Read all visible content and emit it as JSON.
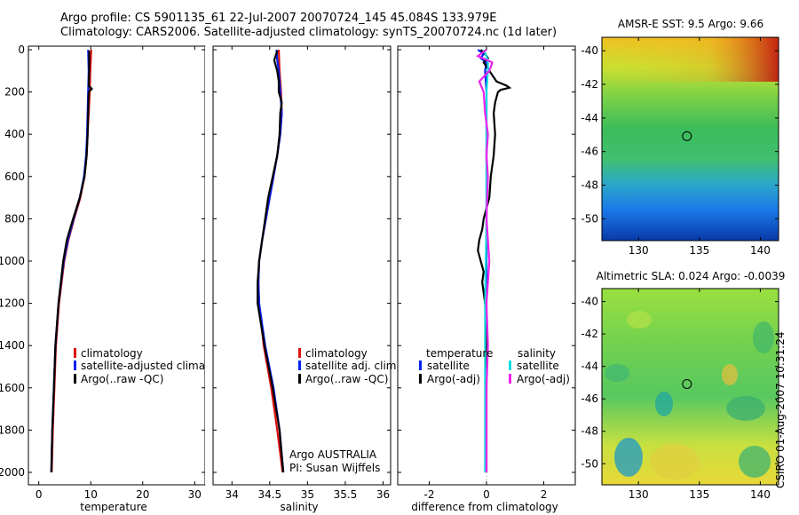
{
  "header": {
    "line1": "Argo profile: CS 5901135_61 22-Jul-2007 20070724_145 45.084S 133.979E",
    "line2": "Climatology: CARS2006. Satellite-adjusted climatology: synTS_20070724.nc (1d later)"
  },
  "stamp": "CSIRO 01-Aug-2007 10:31:24",
  "colors": {
    "climatology": "#dd1111",
    "satellite": "#0022ee",
    "argo": "#000000",
    "sal_satellite": "#11dddd",
    "sal_argo": "#ee22ee"
  },
  "chart_data": [
    {
      "type": "line",
      "id": "temperature",
      "xlabel": "temperature",
      "ylabel": "",
      "xlim": [
        -2,
        32
      ],
      "ylim": [
        2050,
        0
      ],
      "xticks": [
        0,
        10,
        20,
        30
      ],
      "xtick_labels": [
        "0",
        "10",
        "20",
        "30"
      ],
      "yticks": [
        0,
        200,
        400,
        600,
        800,
        1000,
        1200,
        1400,
        1600,
        1800,
        2000
      ],
      "ytick_labels": [
        "0",
        "200",
        "400",
        "600",
        "800",
        "1000",
        "1200",
        "1400",
        "1600",
        "1800",
        "2000"
      ],
      "legend": [
        "climatology",
        "satellite-adjusted climatology",
        "Argo(..raw -QC)"
      ],
      "series": [
        {
          "name": "climatology",
          "color": "#dd1111",
          "depth": [
            0,
            100,
            200,
            300,
            400,
            500,
            600,
            700,
            800,
            900,
            1000,
            1200,
            1400,
            1600,
            1800,
            2000
          ],
          "values": [
            10.1,
            9.9,
            9.8,
            9.6,
            9.4,
            9.2,
            8.8,
            8.0,
            6.8,
            5.7,
            4.9,
            3.9,
            3.3,
            3.0,
            2.7,
            2.5
          ]
        },
        {
          "name": "satellite-adjusted climatology",
          "color": "#0022ee",
          "depth": [
            0,
            100,
            200,
            300,
            400,
            500,
            600,
            700,
            800,
            900,
            1000,
            1200,
            1400,
            1600,
            1800,
            2000
          ],
          "values": [
            9.5,
            9.6,
            9.5,
            9.4,
            9.3,
            9.1,
            8.7,
            7.9,
            6.7,
            5.6,
            4.8,
            3.8,
            3.2,
            2.9,
            2.6,
            2.4
          ]
        },
        {
          "name": "Argo(..raw -QC)",
          "color": "#000000",
          "depth": [
            5,
            100,
            170,
            185,
            200,
            300,
            400,
            500,
            600,
            700,
            800,
            900,
            1000,
            1200,
            1400,
            1600,
            1800,
            2000
          ],
          "values": [
            9.7,
            9.7,
            9.6,
            10.2,
            9.6,
            9.5,
            9.4,
            9.2,
            8.8,
            7.9,
            6.6,
            5.4,
            4.7,
            3.8,
            3.2,
            2.9,
            2.6,
            2.4
          ]
        }
      ]
    },
    {
      "type": "line",
      "id": "salinity",
      "xlabel": "salinity",
      "xlim": [
        33.75,
        36.1
      ],
      "ylim": [
        2050,
        0
      ],
      "xticks": [
        34,
        34.5,
        35,
        35.5,
        36
      ],
      "xtick_labels": [
        "34",
        "34.5",
        "35",
        "35.5",
        "36"
      ],
      "legend": [
        "climatology",
        "satellite adj. clim.",
        "Argo(..raw -QC)"
      ],
      "annotation": [
        "Argo AUSTRALIA",
        "PI: Susan Wijffels"
      ],
      "series": [
        {
          "name": "climatology",
          "color": "#dd1111",
          "depth": [
            0,
            100,
            200,
            300,
            400,
            500,
            600,
            700,
            800,
            900,
            1000,
            1100,
            1200,
            1400,
            1600,
            1800,
            2000
          ],
          "values": [
            34.62,
            34.63,
            34.65,
            34.66,
            34.64,
            34.6,
            34.55,
            34.5,
            34.45,
            34.4,
            34.36,
            34.35,
            34.36,
            34.42,
            34.52,
            34.6,
            34.67
          ]
        },
        {
          "name": "satellite adj. clim.",
          "color": "#0022ee",
          "depth": [
            0,
            50,
            100,
            200,
            300,
            400,
            500,
            600,
            700,
            800,
            900,
            1000,
            1100,
            1200,
            1400,
            1600,
            1800,
            2000
          ],
          "values": [
            34.59,
            34.6,
            34.62,
            34.64,
            34.66,
            34.64,
            34.6,
            34.55,
            34.5,
            34.45,
            34.4,
            34.36,
            34.35,
            34.36,
            34.44,
            34.55,
            34.63,
            34.68
          ]
        },
        {
          "name": "Argo(..raw -QC)",
          "color": "#000000",
          "depth": [
            5,
            50,
            100,
            150,
            200,
            250,
            300,
            400,
            500,
            600,
            700,
            800,
            900,
            1000,
            1100,
            1200,
            1400,
            1600,
            1800,
            2000
          ],
          "values": [
            34.6,
            34.56,
            34.6,
            34.62,
            34.62,
            34.66,
            34.64,
            34.63,
            34.6,
            34.54,
            34.48,
            34.44,
            34.4,
            34.36,
            34.34,
            34.34,
            34.43,
            34.54,
            34.63,
            34.68
          ]
        }
      ]
    },
    {
      "type": "line",
      "id": "difference",
      "xlabel": "difference from climatology",
      "xlim": [
        -3.1,
        3.1
      ],
      "ylim": [
        2050,
        0
      ],
      "xticks": [
        -2,
        0,
        2
      ],
      "xtick_labels": [
        "-2",
        "0",
        "2"
      ],
      "legend_temperature_title": "temperature",
      "legend_salinity_title": "salinity",
      "legend": [
        "satellite",
        "Argo(-adj)",
        "satellite",
        "Argo(-adj)"
      ],
      "series": [
        {
          "name": "temperature satellite",
          "color": "#0022ee",
          "depth": [
            0,
            20,
            40,
            60,
            100,
            200,
            400,
            800,
            1200,
            1600,
            2000
          ],
          "values": [
            -0.3,
            -0.1,
            -0.2,
            0.0,
            -0.05,
            0.0,
            0.0,
            0.0,
            0.0,
            -0.02,
            -0.02
          ]
        },
        {
          "name": "temperature Argo(-adj)",
          "color": "#000000",
          "depth": [
            0,
            20,
            40,
            60,
            100,
            150,
            170,
            180,
            190,
            200,
            250,
            300,
            400,
            500,
            600,
            700,
            800,
            850,
            900,
            950,
            1000,
            1050,
            1100,
            1150,
            1200,
            1300,
            1400,
            1600,
            1800,
            2000
          ],
          "values": [
            -0.2,
            -0.05,
            0.05,
            -0.1,
            0.1,
            0.35,
            0.7,
            0.8,
            0.5,
            0.4,
            0.3,
            0.25,
            0.3,
            0.25,
            0.15,
            0.1,
            -0.1,
            -0.15,
            -0.25,
            -0.3,
            -0.2,
            -0.1,
            -0.15,
            -0.1,
            -0.05,
            0.0,
            0.0,
            0.0,
            0.0,
            0.0
          ]
        },
        {
          "name": "salinity satellite",
          "color": "#11dddd",
          "depth": [
            0,
            50,
            100,
            200,
            400,
            800,
            1200,
            1600,
            2000
          ],
          "values": [
            -0.1,
            0.05,
            0.05,
            0.0,
            0.0,
            0.0,
            -0.05,
            -0.05,
            -0.05
          ]
        },
        {
          "name": "salinity Argo(-adj)",
          "color": "#ee22ee",
          "depth": [
            0,
            30,
            60,
            100,
            150,
            200,
            300,
            400,
            500,
            600,
            800,
            1000,
            1200,
            1400,
            1600,
            1800,
            2000
          ],
          "values": [
            0.0,
            -0.3,
            0.2,
            0.1,
            -0.25,
            -0.1,
            -0.05,
            0.05,
            0.0,
            0.05,
            0.0,
            0.1,
            0.0,
            0.05,
            0.0,
            0.0,
            0.0
          ]
        }
      ]
    },
    {
      "type": "heatmap",
      "id": "sst-map",
      "title": "AMSR-E SST: 9.5 Argo: 9.66",
      "xlim": [
        127,
        141.5
      ],
      "ylim": [
        -51.3,
        -39.2
      ],
      "xticks": [
        130,
        135,
        140
      ],
      "xtick_labels": [
        "130",
        "135",
        "140"
      ],
      "yticks": [
        -40,
        -42,
        -44,
        -46,
        -48,
        -50
      ],
      "ytick_labels": [
        "-40",
        "-42",
        "-44",
        "-46",
        "-48",
        "-50"
      ],
      "marker": {
        "lon": 133.979,
        "lat": -45.084
      }
    },
    {
      "type": "heatmap",
      "id": "sla-map",
      "title": "Altimetric SLA: 0.024 Argo: -0.0039",
      "xlim": [
        127,
        141.5
      ],
      "ylim": [
        -51.3,
        -39.2
      ],
      "xticks": [
        130,
        135,
        140
      ],
      "xtick_labels": [
        "130",
        "135",
        "140"
      ],
      "yticks": [
        -40,
        -42,
        -44,
        -46,
        -48,
        -50
      ],
      "ytick_labels": [
        "-40",
        "-42",
        "-44",
        "-46",
        "-48",
        "-50"
      ],
      "marker": {
        "lon": 133.979,
        "lat": -45.084
      }
    }
  ]
}
